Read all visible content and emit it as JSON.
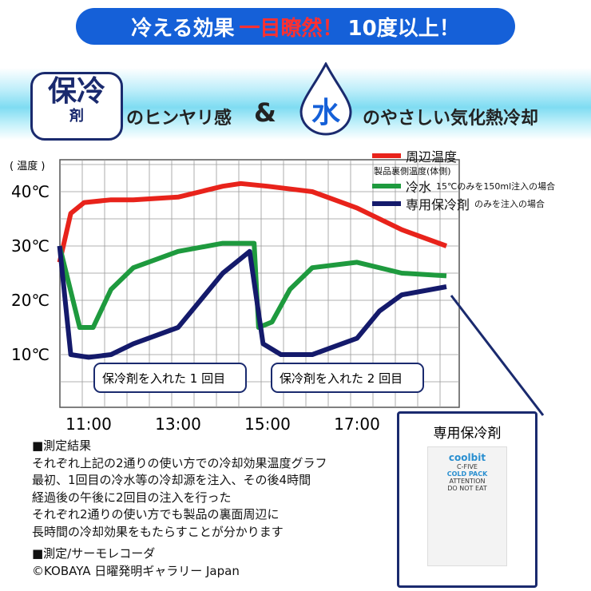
{
  "banner": {
    "part1": "冷える効果",
    "part2": "一目瞭然！",
    "part3": "10度以上！"
  },
  "header": {
    "badge_main": "保冷",
    "badge_sub": "剤",
    "text1": "のヒンヤリ感",
    "amp": "&",
    "drop_char": "水",
    "text2": "のやさしい気化熱冷却"
  },
  "legend": {
    "red_label": "周辺温度",
    "subtitle": "製品裏側温度(体側)",
    "green_label": "冷水",
    "green_note": "15℃のみを150ml注入の場合",
    "navy_label": "専用保冷剤",
    "navy_note": "のみを注入の場合"
  },
  "callouts": [
    "保冷剤を入れた 1 回目",
    "保冷剤を入れた 2 回目"
  ],
  "results": {
    "title": "■測定結果",
    "lines": [
      "それぞれ上記の2通りの使い方での冷却効果温度グラフ",
      "最初、1回目の冷水等の冷却源を注入、その後4時間",
      "経過後の午後に2回目の注入を行った",
      "それぞれ2通りの使い方でも製品の裏面周辺に",
      "長時間の冷却効果をもたらすことが分かります"
    ],
    "method": "■測定/サーモレコーダ",
    "credit": "©KOBAYA 日曜発明ギャラリー Japan"
  },
  "pack": {
    "title": "専用保冷剤",
    "brand": "coolbit",
    "model": "C-FIVE",
    "type": "COLD PACK",
    "attention": "ATTENTION",
    "warning": "DO NOT EAT"
  },
  "chart_data": {
    "type": "line",
    "ylabel": "( 温度 )",
    "yticks": [
      "10℃",
      "20℃",
      "30℃",
      "40℃"
    ],
    "ytick_values": [
      10,
      20,
      30,
      40
    ],
    "xticks": [
      "11:00",
      "13:00",
      "15:00",
      "17:00"
    ],
    "xtick_values": [
      11,
      13,
      15,
      17
    ],
    "xlim": [
      10.3,
      19.2
    ],
    "ylim": [
      0,
      45
    ],
    "series": [
      {
        "name": "周辺温度",
        "color": "#e8231b",
        "x": [
          10.35,
          10.6,
          10.9,
          11.5,
          12,
          13,
          14,
          14.4,
          15,
          16,
          17,
          18,
          19
        ],
        "y": [
          27,
          36,
          38,
          38.5,
          38.5,
          39,
          41,
          41.5,
          41,
          40,
          37,
          33,
          30
        ]
      },
      {
        "name": "冷水",
        "color": "#1e9a3e",
        "x": [
          10.35,
          10.8,
          11.1,
          11.5,
          12,
          13,
          14,
          14.7,
          14.8,
          15.1,
          15.5,
          16,
          17,
          18,
          19
        ],
        "y": [
          30,
          15,
          15,
          22,
          26,
          29,
          30.5,
          30.5,
          15,
          16,
          22,
          26,
          27,
          25,
          24.5
        ]
      },
      {
        "name": "専用保冷剤",
        "color": "#141a6b",
        "x": [
          10.35,
          10.6,
          11,
          11.5,
          12,
          13,
          14,
          14.6,
          14.9,
          15.3,
          16,
          17,
          17.5,
          18,
          19
        ],
        "y": [
          30,
          10,
          9.5,
          10,
          12,
          15,
          25,
          29,
          12,
          10,
          10,
          13,
          18,
          21,
          22.5
        ]
      }
    ]
  }
}
